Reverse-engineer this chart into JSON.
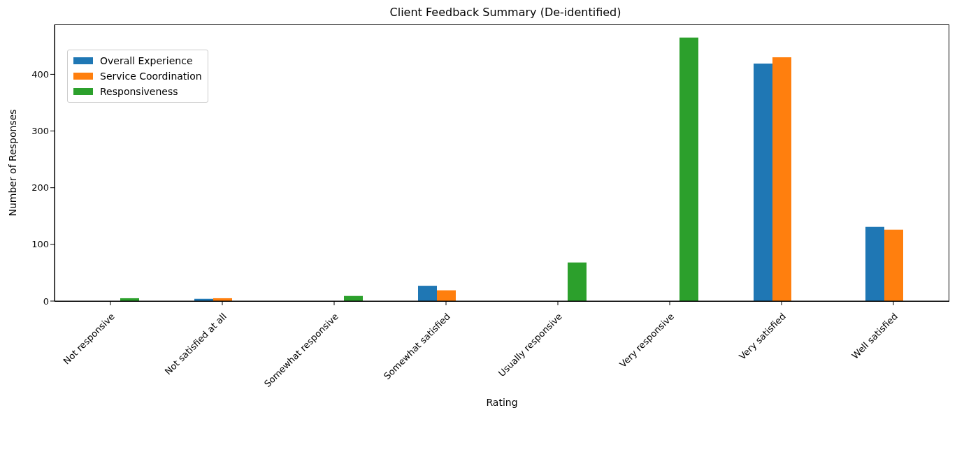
{
  "chart_data": {
    "type": "bar",
    "title": "Client Feedback Summary (De-identified)",
    "xlabel": "Rating",
    "ylabel": "Number of Responses",
    "categories": [
      "Not responsive",
      "Not satisfied at all",
      "Somewhat responsive",
      "Somewhat satisfied",
      "Usually responsive",
      "Very responsive",
      "Very satisfied",
      "Well satisfied"
    ],
    "series": [
      {
        "name": "Overall Experience",
        "color": "#1f77b4",
        "values": [
          null,
          4,
          null,
          27,
          null,
          null,
          419,
          131
        ]
      },
      {
        "name": "Service Coordination",
        "color": "#ff7f0e",
        "values": [
          null,
          5,
          null,
          19,
          null,
          null,
          430,
          126
        ]
      },
      {
        "name": "Responsiveness",
        "color": "#2ca02c",
        "values": [
          5,
          null,
          9,
          null,
          68,
          465,
          null,
          null
        ]
      }
    ],
    "ylim": [
      0,
      488
    ],
    "yticks": [
      0,
      100,
      200,
      300,
      400
    ],
    "legend": "top left"
  }
}
